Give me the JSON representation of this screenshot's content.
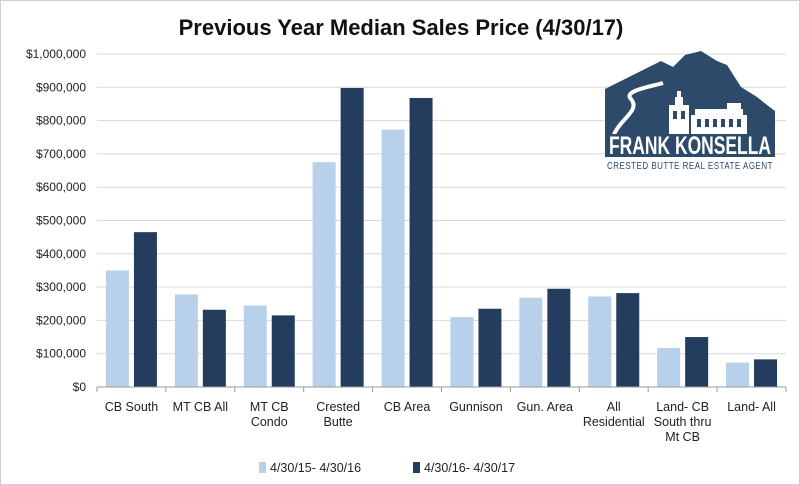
{
  "colors": {
    "series_light": "#b8d0ea",
    "series_dark": "#243d5e",
    "grid": "#d9d9d9",
    "axis": "#9a9a9a",
    "logo_navy": "#2e4a6b"
  },
  "logo": {
    "name": "FRANK KONSELLA",
    "tagline": "CRESTED BUTTE REAL ESTATE AGENT"
  },
  "chart_data": {
    "type": "bar",
    "title": "Previous Year Median Sales Price (4/30/17)",
    "xlabel": "",
    "ylabel": "",
    "ylim": [
      0,
      1000000
    ],
    "yticks": [
      0,
      100000,
      200000,
      300000,
      400000,
      500000,
      600000,
      700000,
      800000,
      900000,
      1000000
    ],
    "ytick_labels": [
      "$0",
      "$100,000",
      "$200,000",
      "$300,000",
      "$400,000",
      "$500,000",
      "$600,000",
      "$700,000",
      "$800,000",
      "$900,000",
      "$1,000,000"
    ],
    "grid": true,
    "legend_position": "bottom",
    "categories": [
      [
        "CB South"
      ],
      [
        "MT CB All"
      ],
      [
        "MT CB",
        "Condo"
      ],
      [
        "Crested",
        "Butte"
      ],
      [
        "CB Area"
      ],
      [
        "Gunnison"
      ],
      [
        "Gun. Area"
      ],
      [
        "All",
        "Residential"
      ],
      [
        "Land- CB",
        "South thru",
        "Mt CB"
      ],
      [
        "Land- All"
      ]
    ],
    "series": [
      {
        "name": "4/30/15- 4/30/16",
        "values": [
          350000,
          278000,
          245000,
          675000,
          773000,
          210000,
          268000,
          272000,
          117000,
          73000
        ]
      },
      {
        "name": "4/30/16- 4/30/17",
        "values": [
          465000,
          232000,
          215000,
          898000,
          868000,
          235000,
          295000,
          282000,
          150000,
          83000
        ]
      }
    ]
  }
}
